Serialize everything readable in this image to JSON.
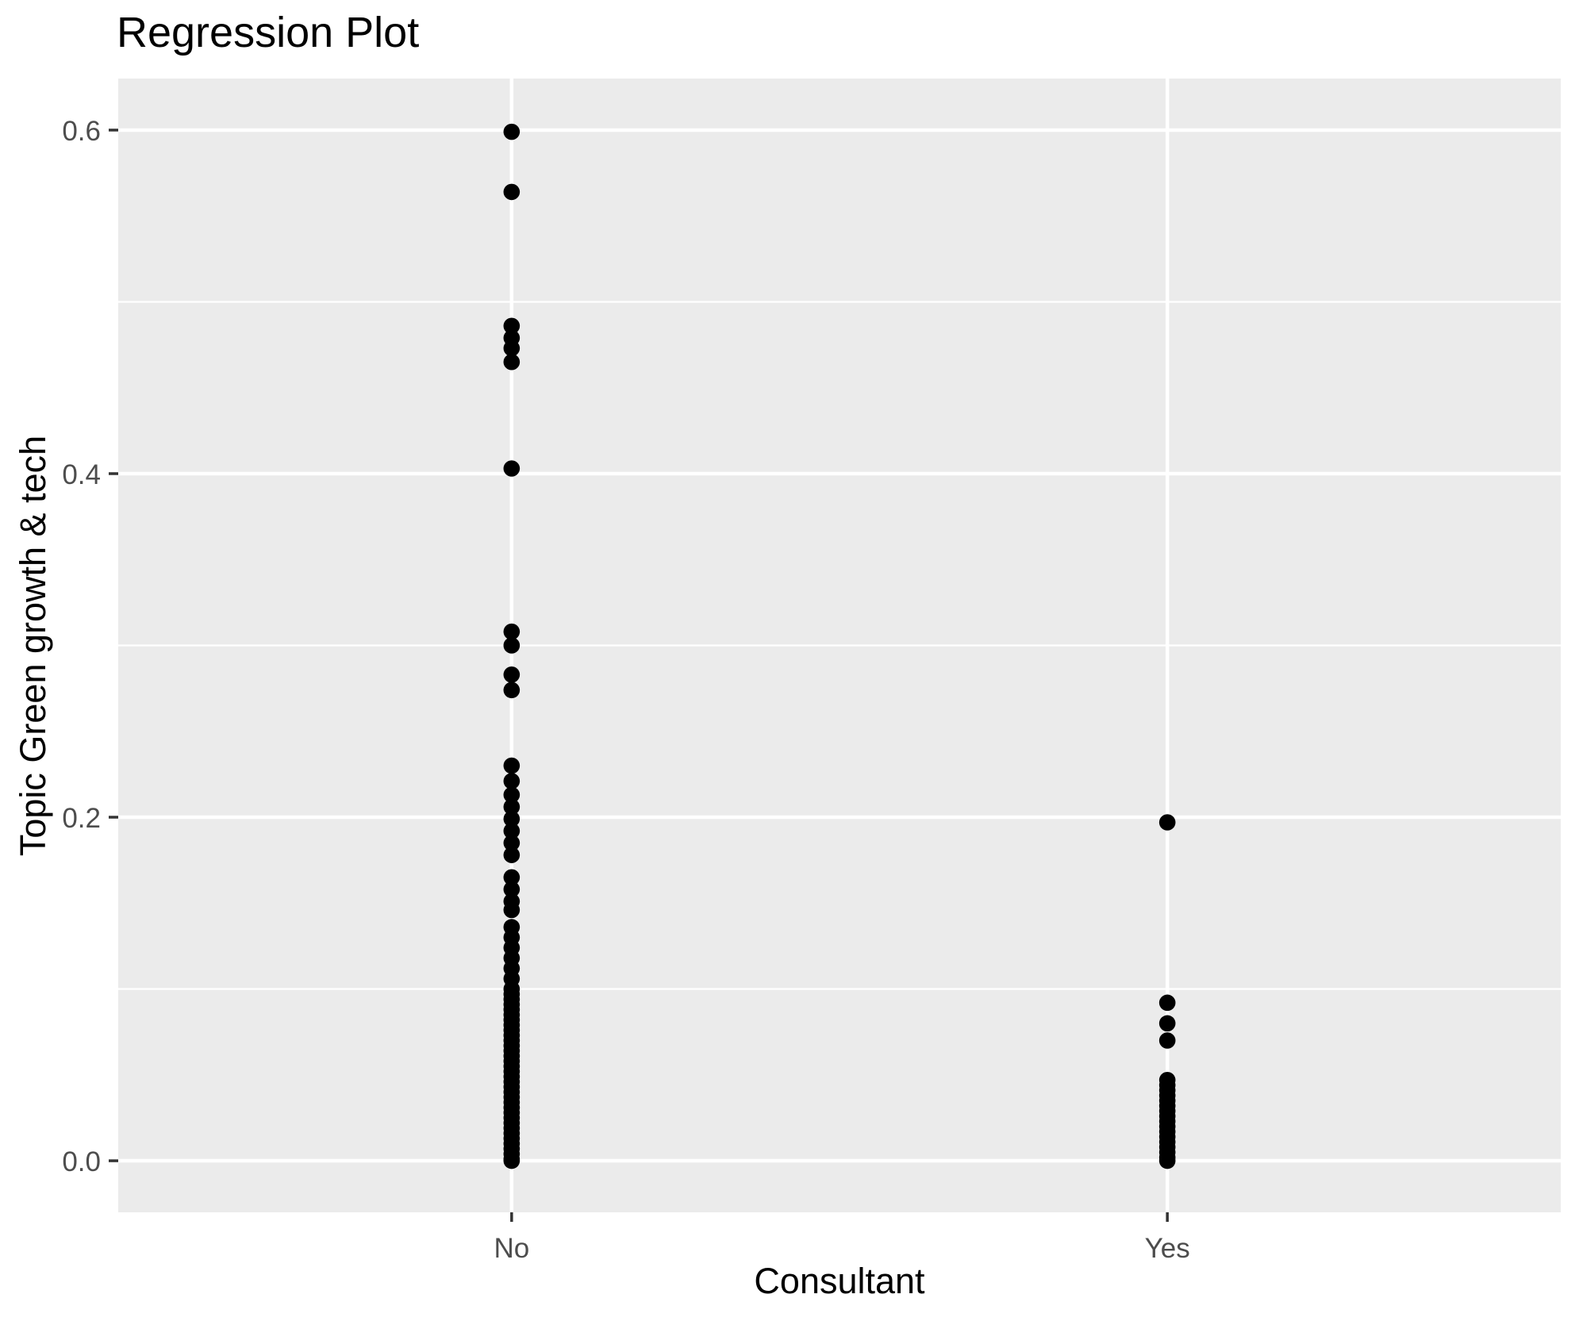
{
  "chart_data": {
    "type": "scatter",
    "title": "Regression Plot",
    "xlabel": "Consultant",
    "ylabel": "Topic Green growth & tech",
    "categories": [
      "No",
      "Yes"
    ],
    "ylim": [
      -0.03,
      0.63
    ],
    "yticks": [
      0.0,
      0.2,
      0.4,
      0.6
    ],
    "ytick_labels": [
      "0.0",
      "0.2",
      "0.4",
      "0.6"
    ],
    "minor_yticks": [
      0.1,
      0.3,
      0.5
    ],
    "grid": "major+minor horizontal, major vertical at categories",
    "legend": "none",
    "series": [
      {
        "name": "No",
        "values": [
          0.599,
          0.564,
          0.486,
          0.479,
          0.473,
          0.465,
          0.403,
          0.308,
          0.3,
          0.283,
          0.274,
          0.23,
          0.221,
          0.213,
          0.206,
          0.199,
          0.192,
          0.185,
          0.178,
          0.165,
          0.158,
          0.151,
          0.146,
          0.136,
          0.13,
          0.124,
          0.118,
          0.112,
          0.106,
          0.1,
          0.097,
          0.094,
          0.091,
          0.088,
          0.085,
          0.082,
          0.079,
          0.076,
          0.073,
          0.07,
          0.067,
          0.064,
          0.061,
          0.058,
          0.055,
          0.052,
          0.049,
          0.046,
          0.043,
          0.04,
          0.037,
          0.034,
          0.031,
          0.028,
          0.025,
          0.022,
          0.019,
          0.016,
          0.013,
          0.01,
          0.007,
          0.004,
          0.001,
          0.0
        ]
      },
      {
        "name": "Yes",
        "values": [
          0.197,
          0.092,
          0.08,
          0.07,
          0.047,
          0.044,
          0.041,
          0.038,
          0.035,
          0.032,
          0.029,
          0.026,
          0.023,
          0.02,
          0.017,
          0.014,
          0.011,
          0.008,
          0.005,
          0.002,
          0.0
        ]
      }
    ],
    "style": {
      "panel_bg": "#EBEBEB",
      "grid_color": "#FFFFFF",
      "point_color": "#000000",
      "axis_text_color": "#4D4D4D",
      "tick_color": "#333333",
      "title_color": "#000000",
      "point_radius": 10.3
    }
  }
}
